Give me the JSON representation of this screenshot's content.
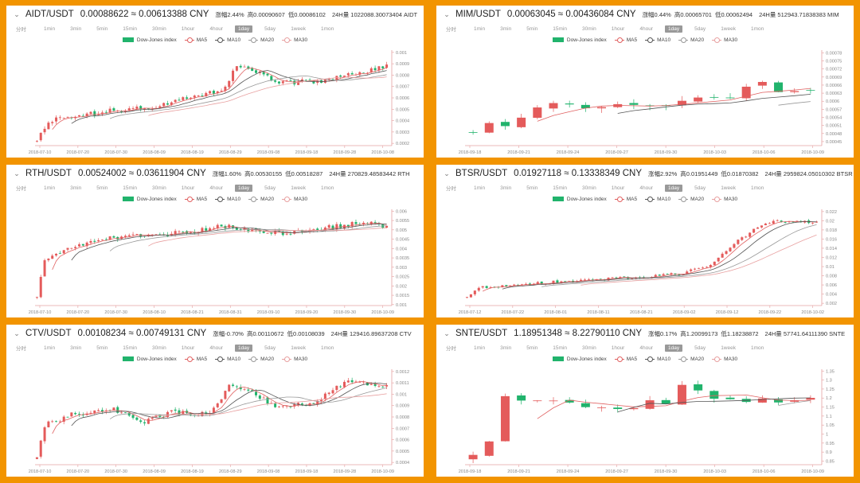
{
  "colors": {
    "up": "#e45b5b",
    "down": "#21b36c",
    "ma5": "#e06060",
    "ma10": "#555555",
    "ma20": "#999999",
    "ma30": "#e8a0a0",
    "frame": "#f29400",
    "axis": "#e5a0a0"
  },
  "icons": {
    "collapse": "chevron-down-icon"
  },
  "timeframes": [
    "分时",
    "1min",
    "3min",
    "5min",
    "15min",
    "30min",
    "1hour",
    "4hour",
    "1day",
    "5day",
    "1week",
    "1mon"
  ],
  "active_timeframe": "1day",
  "legend": [
    "Dow-Jones index",
    "MA5",
    "MA10",
    "MA20",
    "MA30"
  ],
  "panels": [
    {
      "pair": "AIDT/USDT",
      "price": "0.00088622 ≈ 0.00613388 CNY",
      "change": "涨幅2.44%",
      "high": "高0.00090607",
      "low": "低0.00086102",
      "volume": "24H量 1022088.30073404 AIDT"
    },
    {
      "pair": "MIM/USDT",
      "price": "0.00063045 ≈ 0.00436084 CNY",
      "change": "涨幅0.44%",
      "high": "高0.00065701",
      "low": "低0.00062494",
      "volume": "24H量 512943.71838383 MIM"
    },
    {
      "pair": "RTH/USDT",
      "price": "0.00524002 ≈ 0.03611904 CNY",
      "change": "涨幅1.60%",
      "high": "高0.00530155",
      "low": "低0.00518287",
      "volume": "24H量 270829.48583442 RTH"
    },
    {
      "pair": "BTSR/USDT",
      "price": "0.01927118 ≈ 0.13338349 CNY",
      "change": "涨幅2.92%",
      "high": "高0.01951449",
      "low": "低0.01870382",
      "volume": "24H量 2959824.05010302 BTSR"
    },
    {
      "pair": "CTV/USDT",
      "price": "0.00108234 ≈ 0.00749131 CNY",
      "change": "涨幅-0.70%",
      "high": "高0.00110672",
      "low": "低0.00108039",
      "volume": "24H量 129416.89637208 CTV"
    },
    {
      "pair": "SNTE/USDT",
      "price": "1.18951348 ≈ 8.22790110 CNY",
      "change": "涨幅0.17%",
      "high": "高1.20099173",
      "low": "低1.18238872",
      "volume": "24H量 57741.64111390 SNTE"
    }
  ],
  "chart_data": [
    {
      "type": "candlestick",
      "series": [
        {
          "name": "Dow-Jones index"
        },
        {
          "name": "MA5"
        },
        {
          "name": "MA10"
        },
        {
          "name": "MA20"
        },
        {
          "name": "MA30"
        }
      ],
      "x_ticks": [
        "2018-07-10",
        "2018-07-20",
        "2018-07-30",
        "2018-08-09",
        "2018-08-19",
        "2018-08-29",
        "2018-09-08",
        "2018-09-18",
        "2018-09-28",
        "2018-10-08"
      ],
      "y_ticks": [
        "0.001",
        "0.0009",
        "0.0008",
        "0.0007",
        "0.0006",
        "0.0005",
        "0.0004",
        "0.0003",
        "0.0002"
      ],
      "ylim": [
        0.00018,
        0.00102
      ],
      "n": 92,
      "waypoints": [
        [
          0,
          0.00024
        ],
        [
          4,
          0.0004
        ],
        [
          20,
          0.00049
        ],
        [
          30,
          0.00052
        ],
        [
          40,
          0.00061
        ],
        [
          48,
          0.00067
        ],
        [
          52,
          0.00087
        ],
        [
          58,
          0.00083
        ],
        [
          62,
          0.00073
        ],
        [
          68,
          0.00074
        ],
        [
          75,
          0.00075
        ],
        [
          84,
          0.00082
        ],
        [
          91,
          0.00089
        ]
      ],
      "seed": 11,
      "vol": 2e-05
    },
    {
      "type": "candlestick",
      "series": [
        {
          "name": "Dow-Jones index"
        },
        {
          "name": "MA5"
        },
        {
          "name": "MA10"
        },
        {
          "name": "MA20"
        },
        {
          "name": "MA30"
        }
      ],
      "x_ticks": [
        "2018-09-18",
        "2018-09-21",
        "2018-09-24",
        "2018-09-27",
        "2018-09-30",
        "2018-10-03",
        "2018-10-06",
        "2018-10-09"
      ],
      "y_ticks": [
        "0.00078",
        "0.00075",
        "0.00072",
        "0.00069",
        "0.00066",
        "0.00063",
        "0.0006",
        "0.00057",
        "0.00054",
        "0.00051",
        "0.00048",
        "0.00045"
      ],
      "ylim": [
        0.000435,
        0.00079
      ],
      "n": 22,
      "waypoints": [
        [
          0,
          0.0005
        ],
        [
          2,
          0.00052
        ],
        [
          4,
          0.00058
        ],
        [
          6,
          0.0006
        ],
        [
          8,
          0.00057
        ],
        [
          10,
          0.00058
        ],
        [
          12,
          0.0006
        ],
        [
          14,
          0.00061
        ],
        [
          16,
          0.00062
        ],
        [
          18,
          0.00066
        ],
        [
          20,
          0.00064
        ],
        [
          21,
          0.00064
        ]
      ],
      "seed": 5,
      "vol": 1.5e-05
    },
    {
      "type": "candlestick",
      "series": [
        {
          "name": "Dow-Jones index"
        },
        {
          "name": "MA5"
        },
        {
          "name": "MA10"
        },
        {
          "name": "MA20"
        },
        {
          "name": "MA30"
        }
      ],
      "x_ticks": [
        "2018-07-10",
        "2018-07-20",
        "2018-07-30",
        "2018-08-10",
        "2018-08-21",
        "2018-08-31",
        "2018-09-10",
        "2018-09-20",
        "2018-09-30",
        "2018-10-09"
      ],
      "y_ticks": [
        "0.006",
        "0.0055",
        "0.005",
        "0.0045",
        "0.004",
        "0.0035",
        "0.003",
        "0.0025",
        "0.002",
        "0.0015",
        "0.001"
      ],
      "ylim": [
        0.00095,
        0.0061
      ],
      "n": 92,
      "waypoints": [
        [
          0,
          0.0015
        ],
        [
          2,
          0.0033
        ],
        [
          10,
          0.0042
        ],
        [
          20,
          0.0046
        ],
        [
          30,
          0.0047
        ],
        [
          40,
          0.0049
        ],
        [
          48,
          0.0052
        ],
        [
          55,
          0.005
        ],
        [
          65,
          0.0048
        ],
        [
          75,
          0.0051
        ],
        [
          85,
          0.0054
        ],
        [
          91,
          0.0052
        ]
      ],
      "seed": 23,
      "vol": 0.00012
    },
    {
      "type": "candlestick",
      "series": [
        {
          "name": "Dow-Jones index"
        },
        {
          "name": "MA5"
        },
        {
          "name": "MA10"
        },
        {
          "name": "MA20"
        },
        {
          "name": "MA30"
        }
      ],
      "x_ticks": [
        "2018-07-12",
        "2018-07-22",
        "2018-08-01",
        "2018-08-11",
        "2018-08-21",
        "2018-09-02",
        "2018-09-12",
        "2018-09-22",
        "2018-10-02"
      ],
      "y_ticks": [
        "0.022",
        "0.02",
        "0.018",
        "0.016",
        "0.014",
        "0.012",
        "0.01",
        "0.008",
        "0.006",
        "0.004",
        "0.002"
      ],
      "ylim": [
        0.0015,
        0.0225
      ],
      "n": 90,
      "waypoints": [
        [
          0,
          0.0035
        ],
        [
          3,
          0.0055
        ],
        [
          20,
          0.0065
        ],
        [
          40,
          0.0075
        ],
        [
          55,
          0.0085
        ],
        [
          62,
          0.0105
        ],
        [
          68,
          0.015
        ],
        [
          73,
          0.018
        ],
        [
          78,
          0.02
        ],
        [
          84,
          0.02
        ],
        [
          89,
          0.0195
        ]
      ],
      "seed": 37,
      "vol": 0.0003
    },
    {
      "type": "candlestick",
      "series": [
        {
          "name": "Dow-Jones index"
        },
        {
          "name": "MA5"
        },
        {
          "name": "MA10"
        },
        {
          "name": "MA20"
        },
        {
          "name": "MA30"
        }
      ],
      "x_ticks": [
        "2018-07-10",
        "2018-07-20",
        "2018-07-30",
        "2018-08-09",
        "2018-08-19",
        "2018-08-29",
        "2018-09-08",
        "2018-09-18",
        "2018-09-28",
        "2018-10-09"
      ],
      "y_ticks": [
        "0.0012",
        "0.0011",
        "0.001",
        "0.0009",
        "0.0008",
        "0.0007",
        "0.0006",
        "0.0005",
        "0.0004"
      ],
      "ylim": [
        0.00038,
        0.00122
      ],
      "n": 92,
      "waypoints": [
        [
          0,
          0.00045
        ],
        [
          2,
          0.00073
        ],
        [
          10,
          0.00083
        ],
        [
          20,
          0.00087
        ],
        [
          28,
          0.00076
        ],
        [
          35,
          0.00084
        ],
        [
          45,
          0.00082
        ],
        [
          50,
          0.00108
        ],
        [
          56,
          0.00102
        ],
        [
          62,
          0.00088
        ],
        [
          72,
          0.00092
        ],
        [
          80,
          0.0011
        ],
        [
          91,
          0.00108
        ]
      ],
      "seed": 51,
      "vol": 2e-05
    },
    {
      "type": "candlestick",
      "series": [
        {
          "name": "Dow-Jones index"
        },
        {
          "name": "MA5"
        },
        {
          "name": "MA10"
        },
        {
          "name": "MA20"
        },
        {
          "name": "MA30"
        }
      ],
      "x_ticks": [
        "2018-09-18",
        "2018-09-21",
        "2018-09-24",
        "2018-09-27",
        "2018-09-30",
        "2018-10-03",
        "2018-10-06",
        "2018-10-09"
      ],
      "y_ticks": [
        "1.35",
        "1.3",
        "1.25",
        "1.2",
        "1.15",
        "1.1",
        "1.05",
        "1",
        "0.95",
        "0.9",
        "0.85"
      ],
      "ylim": [
        0.83,
        1.36
      ],
      "n": 22,
      "waypoints": [
        [
          0,
          0.88
        ],
        [
          1,
          0.94
        ],
        [
          2,
          1.2
        ],
        [
          4,
          1.2
        ],
        [
          6,
          1.18
        ],
        [
          8,
          1.14
        ],
        [
          10,
          1.16
        ],
        [
          12,
          1.18
        ],
        [
          13,
          1.26
        ],
        [
          14,
          1.23
        ],
        [
          16,
          1.2
        ],
        [
          18,
          1.18
        ],
        [
          21,
          1.19
        ]
      ],
      "seed": 77,
      "vol": 0.02
    }
  ]
}
